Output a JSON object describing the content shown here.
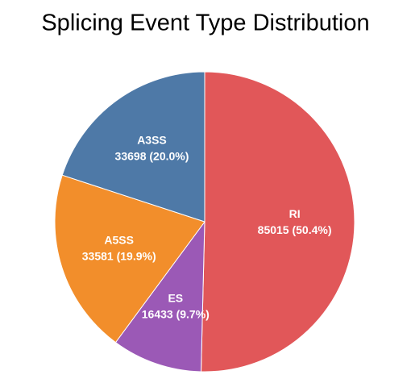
{
  "chart_data": {
    "type": "pie",
    "title": "Splicing Event Type Distribution",
    "categories": [
      "RI",
      "ES",
      "A5SS",
      "A3SS"
    ],
    "values": [
      85015,
      16433,
      33581,
      33698
    ],
    "value_labels": [
      "85015 (50.4%)",
      "16433 (9.7%)",
      "33581 (19.9%)",
      "33698 (20.0%)"
    ],
    "colors": [
      "#e15759",
      "#9b59b6",
      "#f28e2b",
      "#4e79a7"
    ]
  }
}
